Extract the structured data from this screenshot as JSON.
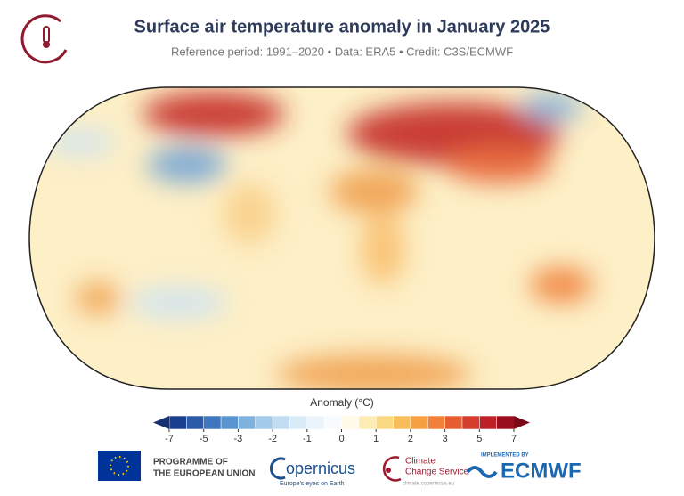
{
  "header": {
    "title": "Surface air temperature anomaly in January 2025",
    "subtitle": "Reference period: 1991–2020 • Data: ERA5 • Credit: C3S/ECMWF"
  },
  "colorbar": {
    "label": "Anomaly (°C)",
    "ticks": [
      -7,
      -5,
      -3,
      -2,
      -1,
      0,
      1,
      2,
      3,
      5,
      7
    ],
    "colors": [
      "#1b3f8f",
      "#2a5aa8",
      "#3e76bf",
      "#5a95d0",
      "#7fb1de",
      "#a3cbe9",
      "#c2ddf1",
      "#d9ebf6",
      "#eaf4fa",
      "#f7fbfd",
      "#fffbe8",
      "#fdedb5",
      "#fbd982",
      "#f9bd5c",
      "#f5a042",
      "#f0803a",
      "#e65f31",
      "#d43d2b",
      "#bb2126",
      "#9a0f1e"
    ],
    "under_color": "#15306f",
    "over_color": "#7a0a18"
  },
  "footer": {
    "eu": {
      "line1": "PROGRAMME OF",
      "line2": "THE EUROPEAN UNION"
    },
    "copernicus": {
      "name": "opernicus",
      "tagline": "Europe's eyes on Earth"
    },
    "c3s": {
      "line1": "Climate",
      "line2": "Change Service",
      "url": "climate.copernicus.eu"
    },
    "ecmwf": {
      "label": "IMPLEMENTED BY",
      "name": "ECMWF"
    }
  }
}
